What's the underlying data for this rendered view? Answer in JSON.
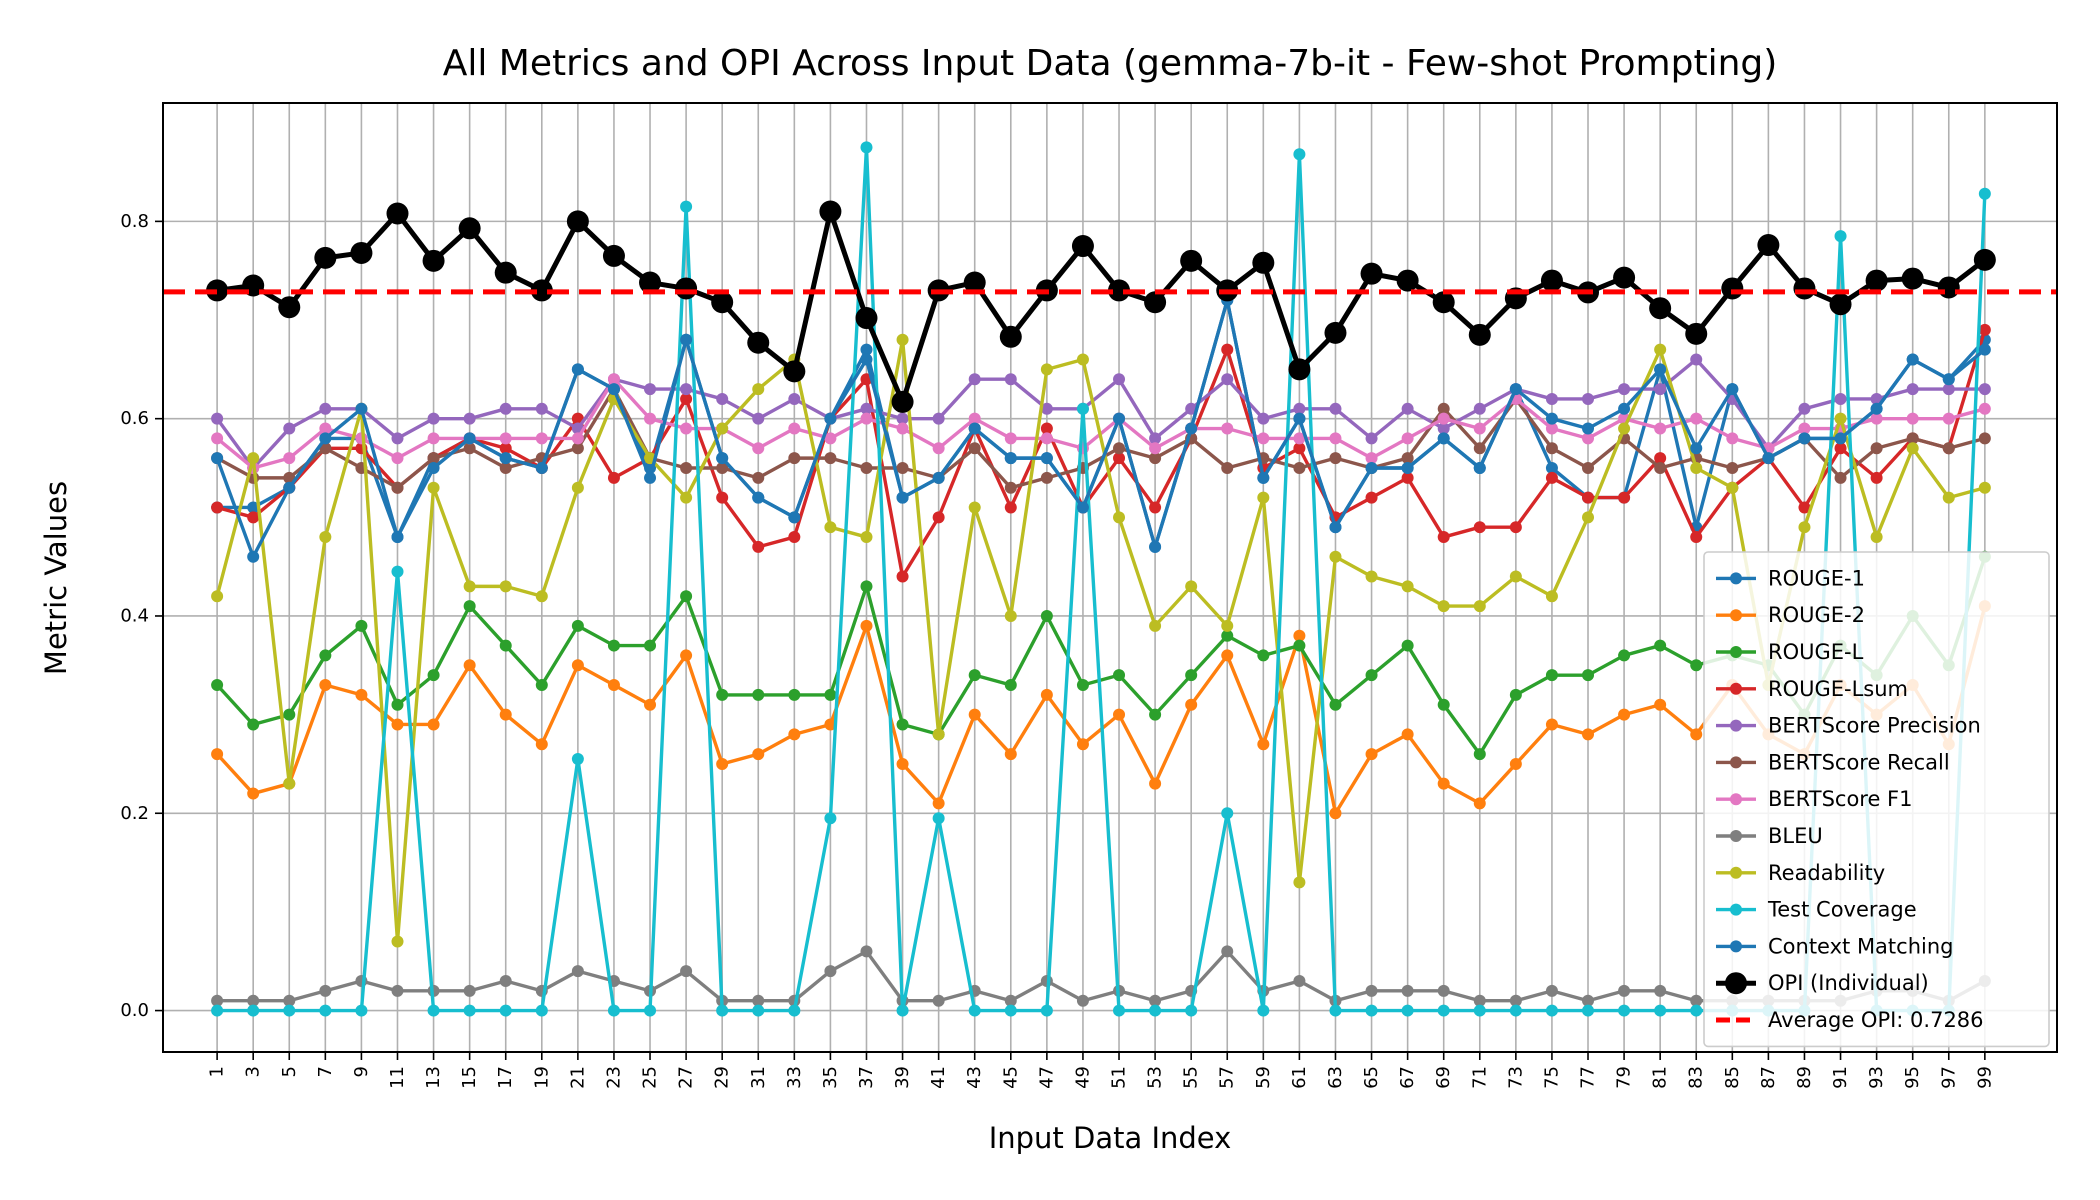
{
  "chart_data": {
    "type": "line",
    "title": "All Metrics and OPI Across Input Data (gemma-7b-it - Few-shot Prompting)",
    "xlabel": "Input Data Index",
    "ylabel": "Metric Values",
    "x": [
      1,
      3,
      5,
      7,
      9,
      11,
      13,
      15,
      17,
      19,
      21,
      23,
      25,
      27,
      29,
      31,
      33,
      35,
      37,
      39,
      41,
      43,
      45,
      47,
      49,
      51,
      53,
      55,
      57,
      59,
      61,
      63,
      65,
      67,
      69,
      71,
      73,
      75,
      77,
      79,
      81,
      83,
      85,
      87,
      89,
      91,
      93,
      95,
      97,
      99
    ],
    "xticks": [
      "1",
      "3",
      "5",
      "7",
      "9",
      "11",
      "13",
      "15",
      "17",
      "19",
      "21",
      "23",
      "25",
      "27",
      "29",
      "31",
      "33",
      "35",
      "37",
      "39",
      "41",
      "43",
      "45",
      "47",
      "49",
      "51",
      "53",
      "55",
      "57",
      "59",
      "61",
      "63",
      "65",
      "67",
      "69",
      "71",
      "73",
      "75",
      "77",
      "79",
      "81",
      "83",
      "85",
      "87",
      "89",
      "91",
      "93",
      "95",
      "97",
      "99"
    ],
    "xlim": [
      -2,
      103
    ],
    "ylim": [
      -0.042,
      0.92
    ],
    "yticks": [
      0.0,
      0.2,
      0.4,
      0.6,
      0.8
    ],
    "ytick_labels": [
      "0.0",
      "0.2",
      "0.4",
      "0.6",
      "0.8"
    ],
    "grid": true,
    "legend_position": "lower-right",
    "reference_line": {
      "name": "Average OPI: 0.7286",
      "value": 0.7286,
      "color": "#ff0000",
      "style": "dashed"
    },
    "series": [
      {
        "name": "ROUGE-1",
        "color": "#1f77b4",
        "values": [
          0.51,
          0.51,
          0.53,
          0.58,
          0.58,
          0.48,
          0.56,
          0.58,
          0.56,
          0.55,
          0.65,
          0.63,
          0.55,
          0.68,
          0.56,
          0.52,
          0.5,
          0.6,
          0.67,
          0.52,
          0.54,
          0.59,
          0.56,
          0.56,
          0.51,
          0.6,
          0.47,
          0.59,
          0.72,
          0.54,
          0.6,
          0.49,
          0.55,
          0.55,
          0.58,
          0.55,
          0.63,
          0.55,
          0.52,
          0.52,
          0.65,
          0.49,
          0.63,
          0.56,
          0.58,
          0.58,
          0.61,
          0.66,
          0.64,
          0.68
        ]
      },
      {
        "name": "ROUGE-2",
        "color": "#ff7f0e",
        "values": [
          0.26,
          0.22,
          0.23,
          0.33,
          0.32,
          0.29,
          0.29,
          0.35,
          0.3,
          0.27,
          0.35,
          0.33,
          0.31,
          0.36,
          0.25,
          0.26,
          0.28,
          0.29,
          0.39,
          0.25,
          0.21,
          0.3,
          0.26,
          0.32,
          0.27,
          0.3,
          0.23,
          0.31,
          0.36,
          0.27,
          0.38,
          0.2,
          0.26,
          0.28,
          0.23,
          0.21,
          0.25,
          0.29,
          0.28,
          0.3,
          0.31,
          0.28,
          0.33,
          0.28,
          0.26,
          0.33,
          0.3,
          0.33,
          0.27,
          0.41
        ]
      },
      {
        "name": "ROUGE-L",
        "color": "#2ca02c",
        "values": [
          0.33,
          0.29,
          0.3,
          0.36,
          0.39,
          0.31,
          0.34,
          0.41,
          0.37,
          0.33,
          0.39,
          0.37,
          0.37,
          0.42,
          0.32,
          0.32,
          0.32,
          0.32,
          0.43,
          0.29,
          0.28,
          0.34,
          0.33,
          0.4,
          0.33,
          0.34,
          0.3,
          0.34,
          0.38,
          0.36,
          0.37,
          0.31,
          0.34,
          0.37,
          0.31,
          0.26,
          0.32,
          0.34,
          0.34,
          0.36,
          0.37,
          0.35,
          0.36,
          0.35,
          0.3,
          0.37,
          0.34,
          0.4,
          0.35,
          0.46
        ]
      },
      {
        "name": "ROUGE-Lsum",
        "color": "#d62728",
        "values": [
          0.51,
          0.5,
          0.53,
          0.57,
          0.57,
          0.53,
          0.56,
          0.58,
          0.57,
          0.55,
          0.6,
          0.54,
          0.56,
          0.62,
          0.52,
          0.47,
          0.48,
          0.6,
          0.64,
          0.44,
          0.5,
          0.59,
          0.51,
          0.59,
          0.51,
          0.56,
          0.51,
          0.58,
          0.67,
          0.55,
          0.57,
          0.5,
          0.52,
          0.54,
          0.48,
          0.49,
          0.49,
          0.54,
          0.52,
          0.52,
          0.56,
          0.48,
          0.53,
          0.56,
          0.51,
          0.57,
          0.54,
          0.58,
          0.57,
          0.69
        ]
      },
      {
        "name": "BERTScore Precision",
        "color": "#9467bd",
        "values": [
          0.6,
          0.55,
          0.59,
          0.61,
          0.61,
          0.58,
          0.6,
          0.6,
          0.61,
          0.61,
          0.59,
          0.64,
          0.63,
          0.63,
          0.62,
          0.6,
          0.62,
          0.6,
          0.61,
          0.6,
          0.6,
          0.64,
          0.64,
          0.61,
          0.61,
          0.64,
          0.58,
          0.61,
          0.64,
          0.6,
          0.61,
          0.61,
          0.58,
          0.61,
          0.59,
          0.61,
          0.63,
          0.62,
          0.62,
          0.63,
          0.63,
          0.66,
          0.62,
          0.57,
          0.61,
          0.62,
          0.62,
          0.63,
          0.63,
          0.63
        ]
      },
      {
        "name": "BERTScore Recall",
        "color": "#8c564b",
        "values": [
          0.56,
          0.54,
          0.54,
          0.57,
          0.55,
          0.53,
          0.56,
          0.57,
          0.55,
          0.56,
          0.57,
          0.63,
          0.56,
          0.55,
          0.55,
          0.54,
          0.56,
          0.56,
          0.55,
          0.55,
          0.54,
          0.57,
          0.53,
          0.54,
          0.55,
          0.57,
          0.56,
          0.58,
          0.55,
          0.56,
          0.55,
          0.56,
          0.55,
          0.56,
          0.61,
          0.57,
          0.62,
          0.57,
          0.55,
          0.58,
          0.55,
          0.56,
          0.55,
          0.56,
          0.58,
          0.54,
          0.57,
          0.58,
          0.57,
          0.58
        ]
      },
      {
        "name": "BERTScore F1",
        "color": "#e377c2",
        "values": [
          0.58,
          0.55,
          0.56,
          0.59,
          0.58,
          0.56,
          0.58,
          0.58,
          0.58,
          0.58,
          0.58,
          0.64,
          0.6,
          0.59,
          0.59,
          0.57,
          0.59,
          0.58,
          0.6,
          0.59,
          0.57,
          0.6,
          0.58,
          0.58,
          0.57,
          0.6,
          0.57,
          0.59,
          0.59,
          0.58,
          0.58,
          0.58,
          0.56,
          0.58,
          0.6,
          0.59,
          0.62,
          0.59,
          0.58,
          0.6,
          0.59,
          0.6,
          0.58,
          0.57,
          0.59,
          0.59,
          0.6,
          0.6,
          0.6,
          0.61
        ]
      },
      {
        "name": "BLEU",
        "color": "#7f7f7f",
        "values": [
          0.01,
          0.01,
          0.01,
          0.02,
          0.03,
          0.02,
          0.02,
          0.02,
          0.03,
          0.02,
          0.04,
          0.03,
          0.02,
          0.04,
          0.01,
          0.01,
          0.01,
          0.04,
          0.06,
          0.01,
          0.01,
          0.02,
          0.01,
          0.03,
          0.01,
          0.02,
          0.01,
          0.02,
          0.06,
          0.02,
          0.03,
          0.01,
          0.02,
          0.02,
          0.02,
          0.01,
          0.01,
          0.02,
          0.01,
          0.02,
          0.02,
          0.01,
          0.01,
          0.01,
          0.01,
          0.01,
          0.02,
          0.02,
          0.01,
          0.03
        ]
      },
      {
        "name": "Readability",
        "color": "#bcbd22",
        "values": [
          0.42,
          0.56,
          0.23,
          0.48,
          0.61,
          0.07,
          0.53,
          0.43,
          0.43,
          0.42,
          0.53,
          0.62,
          0.56,
          0.52,
          0.59,
          0.63,
          0.66,
          0.49,
          0.48,
          0.68,
          0.28,
          0.51,
          0.4,
          0.65,
          0.66,
          0.5,
          0.39,
          0.43,
          0.39,
          0.52,
          0.13,
          0.46,
          0.44,
          0.43,
          0.41,
          0.41,
          0.44,
          0.42,
          0.5,
          0.59,
          0.67,
          0.55,
          0.53,
          0.33,
          0.49,
          0.6,
          0.48,
          0.57,
          0.52,
          0.53
        ]
      },
      {
        "name": "Test Coverage",
        "color": "#17becf",
        "values": [
          0,
          0,
          0,
          0,
          0,
          0.445,
          0,
          0,
          0,
          0,
          0.255,
          0,
          0,
          0.815,
          0,
          0,
          0,
          0.195,
          0.875,
          0,
          0.195,
          0,
          0,
          0,
          0.61,
          0,
          0,
          0,
          0.2,
          0,
          0.868,
          0,
          0,
          0,
          0,
          0,
          0,
          0,
          0,
          0,
          0,
          0,
          0,
          0,
          0,
          0.785,
          0,
          0,
          0,
          0.828
        ]
      },
      {
        "name": "Context Matching",
        "color": "#1f77b4",
        "values": [
          0.56,
          0.46,
          0.53,
          0.58,
          0.61,
          0.48,
          0.55,
          0.58,
          0.56,
          0.55,
          0.65,
          0.63,
          0.54,
          0.68,
          0.56,
          0.52,
          0.5,
          0.6,
          0.66,
          0.52,
          0.54,
          0.59,
          0.56,
          0.56,
          0.51,
          0.6,
          0.47,
          0.59,
          0.72,
          0.54,
          0.6,
          0.49,
          0.55,
          0.55,
          0.58,
          0.55,
          0.63,
          0.6,
          0.59,
          0.61,
          0.65,
          0.57,
          0.63,
          0.56,
          0.58,
          0.58,
          0.61,
          0.66,
          0.64,
          0.67
        ]
      },
      {
        "name": "OPI (Individual)",
        "color": "#000000",
        "emphasis": true,
        "values": [
          0.73,
          0.735,
          0.713,
          0.763,
          0.768,
          0.808,
          0.76,
          0.793,
          0.748,
          0.73,
          0.8,
          0.765,
          0.738,
          0.732,
          0.718,
          0.677,
          0.648,
          0.81,
          0.702,
          0.617,
          0.73,
          0.738,
          0.683,
          0.73,
          0.775,
          0.73,
          0.718,
          0.76,
          0.73,
          0.758,
          0.65,
          0.687,
          0.747,
          0.74,
          0.718,
          0.685,
          0.722,
          0.74,
          0.728,
          0.743,
          0.712,
          0.686,
          0.732,
          0.776,
          0.732,
          0.716,
          0.74,
          0.742,
          0.733,
          0.761
        ]
      }
    ]
  }
}
